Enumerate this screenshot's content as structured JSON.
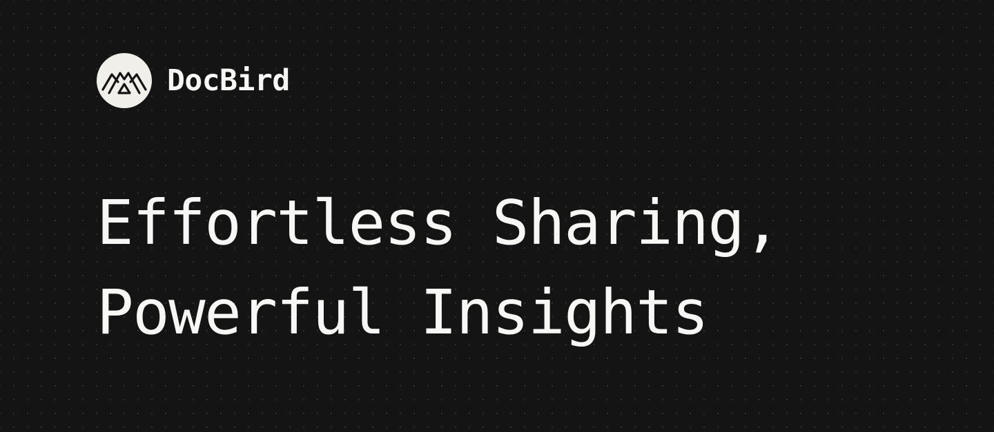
{
  "brand": {
    "name": "DocBird",
    "logo_icon": "docbird-logo-icon",
    "badge_color": "#f1efea",
    "mark_color": "#141414"
  },
  "headline": {
    "line1": "Effortless Sharing,",
    "line2": "Powerful Insights"
  },
  "theme": {
    "background": "#141414",
    "text": "#f7f7f5"
  }
}
